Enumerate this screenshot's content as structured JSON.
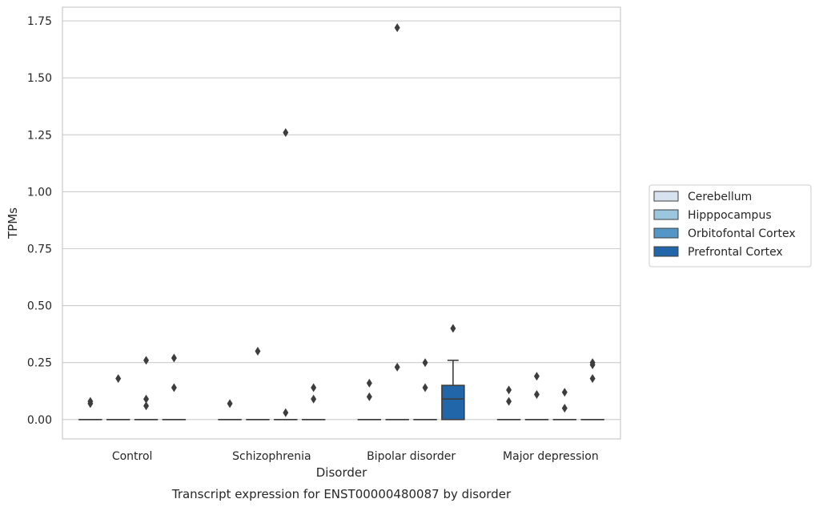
{
  "chart_data": {
    "type": "box",
    "title": "",
    "caption": "Transcript expression for ENST00000480087 by disorder",
    "xlabel": "Disorder",
    "ylabel": "TPMs",
    "ylim": [
      -0.085,
      1.81
    ],
    "yticks": [
      "0.00",
      "0.25",
      "0.50",
      "0.75",
      "1.00",
      "1.25",
      "1.50",
      "1.75"
    ],
    "grid": "horizontal",
    "legend_position": "right",
    "categories": [
      "Control",
      "Schizophrenia",
      "Bipolar disorder",
      "Major depression"
    ],
    "series": [
      {
        "name": "Cerebellum",
        "color": "#d6e3ef"
      },
      {
        "name": "Hipppocampus",
        "color": "#9ac7de"
      },
      {
        "name": "Orbitofontal Cortex",
        "color": "#5496c6"
      },
      {
        "name": "Prefrontal Cortex",
        "color": "#2166a8"
      }
    ],
    "boxes": [
      {
        "category": 0,
        "series": 0,
        "q1": 0,
        "median": 0,
        "q3": 0,
        "whisker_low": 0,
        "whisker_high": 0,
        "outliers": [
          0.08,
          0.07
        ]
      },
      {
        "category": 0,
        "series": 1,
        "q1": 0,
        "median": 0,
        "q3": 0,
        "whisker_low": 0,
        "whisker_high": 0,
        "outliers": [
          0.18
        ]
      },
      {
        "category": 0,
        "series": 2,
        "q1": 0,
        "median": 0,
        "q3": 0,
        "whisker_low": 0,
        "whisker_high": 0,
        "outliers": [
          0.26,
          0.09,
          0.06
        ]
      },
      {
        "category": 0,
        "series": 3,
        "q1": 0,
        "median": 0,
        "q3": 0,
        "whisker_low": 0,
        "whisker_high": 0,
        "outliers": [
          0.27,
          0.14
        ]
      },
      {
        "category": 1,
        "series": 0,
        "q1": 0,
        "median": 0,
        "q3": 0,
        "whisker_low": 0,
        "whisker_high": 0,
        "outliers": [
          0.07
        ]
      },
      {
        "category": 1,
        "series": 1,
        "q1": 0,
        "median": 0,
        "q3": 0,
        "whisker_low": 0,
        "whisker_high": 0,
        "outliers": [
          0.3
        ]
      },
      {
        "category": 1,
        "series": 2,
        "q1": 0,
        "median": 0,
        "q3": 0,
        "whisker_low": 0,
        "whisker_high": 0,
        "outliers": [
          1.26,
          0.03
        ]
      },
      {
        "category": 1,
        "series": 3,
        "q1": 0,
        "median": 0,
        "q3": 0,
        "whisker_low": 0,
        "whisker_high": 0,
        "outliers": [
          0.14,
          0.09
        ]
      },
      {
        "category": 2,
        "series": 0,
        "q1": 0,
        "median": 0,
        "q3": 0,
        "whisker_low": 0,
        "whisker_high": 0,
        "outliers": [
          0.16,
          0.1
        ]
      },
      {
        "category": 2,
        "series": 1,
        "q1": 0,
        "median": 0,
        "q3": 0,
        "whisker_low": 0,
        "whisker_high": 0,
        "outliers": [
          1.72,
          0.23
        ]
      },
      {
        "category": 2,
        "series": 2,
        "q1": 0,
        "median": 0,
        "q3": 0,
        "whisker_low": 0,
        "whisker_high": 0,
        "outliers": [
          0.25,
          0.14
        ]
      },
      {
        "category": 2,
        "series": 3,
        "q1": 0,
        "median": 0.09,
        "q3": 0.15,
        "whisker_low": 0,
        "whisker_high": 0.26,
        "outliers": [
          0.4
        ]
      },
      {
        "category": 3,
        "series": 0,
        "q1": 0,
        "median": 0,
        "q3": 0,
        "whisker_low": 0,
        "whisker_high": 0,
        "outliers": [
          0.13,
          0.08
        ]
      },
      {
        "category": 3,
        "series": 1,
        "q1": 0,
        "median": 0,
        "q3": 0,
        "whisker_low": 0,
        "whisker_high": 0,
        "outliers": [
          0.19,
          0.11
        ]
      },
      {
        "category": 3,
        "series": 2,
        "q1": 0,
        "median": 0,
        "q3": 0,
        "whisker_low": 0,
        "whisker_high": 0,
        "outliers": [
          0.12,
          0.05
        ]
      },
      {
        "category": 3,
        "series": 3,
        "q1": 0,
        "median": 0,
        "q3": 0,
        "whisker_low": 0,
        "whisker_high": 0,
        "outliers": [
          0.25,
          0.24,
          0.18
        ]
      }
    ]
  }
}
